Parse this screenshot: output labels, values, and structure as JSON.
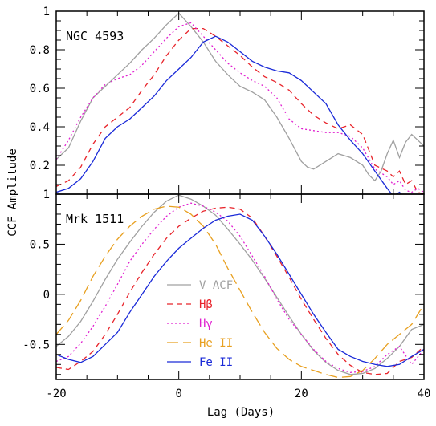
{
  "chart_data": [
    {
      "type": "line",
      "panel_label": "NGC 4593",
      "xlim": [
        -20,
        40
      ],
      "ylim": [
        0.05,
        1.0
      ],
      "yticks": [
        0.2,
        0.4,
        0.6,
        0.8,
        1
      ],
      "ytick_labels": [
        "0.2",
        "0.4",
        "0.6",
        "0.8",
        "1"
      ],
      "series": [
        {
          "key": "vacf",
          "color": "#a0a0a0",
          "dash": "solid",
          "x": [
            -20,
            -18,
            -16,
            -14,
            -12,
            -10,
            -8,
            -6,
            -4,
            -2,
            0,
            2,
            4,
            6,
            8,
            10,
            12,
            14,
            16,
            18,
            20,
            21,
            22,
            24,
            26,
            28,
            30,
            31,
            32,
            33,
            34,
            35,
            36,
            37,
            38,
            39,
            40
          ],
          "y": [
            0.23,
            0.29,
            0.43,
            0.55,
            0.61,
            0.67,
            0.73,
            0.8,
            0.86,
            0.93,
            0.99,
            0.92,
            0.84,
            0.74,
            0.67,
            0.61,
            0.58,
            0.54,
            0.45,
            0.34,
            0.22,
            0.19,
            0.18,
            0.22,
            0.26,
            0.24,
            0.2,
            0.15,
            0.12,
            0.17,
            0.26,
            0.33,
            0.24,
            0.32,
            0.36,
            0.33,
            0.3
          ]
        },
        {
          "key": "hbeta",
          "color": "#e8242b",
          "dash": "7,5",
          "x": [
            -20,
            -18,
            -16,
            -14,
            -12,
            -10,
            -8,
            -6,
            -4,
            -2,
            0,
            2,
            4,
            6,
            8,
            10,
            12,
            14,
            16,
            18,
            20,
            22,
            24,
            26,
            28,
            30,
            32,
            34,
            35,
            36,
            37,
            38,
            39,
            40
          ],
          "y": [
            0.09,
            0.12,
            0.19,
            0.31,
            0.4,
            0.45,
            0.5,
            0.59,
            0.67,
            0.77,
            0.85,
            0.91,
            0.91,
            0.87,
            0.82,
            0.77,
            0.71,
            0.66,
            0.63,
            0.59,
            0.52,
            0.46,
            0.42,
            0.39,
            0.41,
            0.36,
            0.2,
            0.17,
            0.14,
            0.17,
            0.1,
            0.12,
            0.06,
            0.05
          ]
        },
        {
          "key": "hgamma",
          "color": "#e020d0",
          "dash": "2,3",
          "x": [
            -20,
            -18,
            -16,
            -14,
            -12,
            -10,
            -8,
            -6,
            -4,
            -2,
            0,
            2,
            4,
            6,
            8,
            10,
            12,
            14,
            16,
            18,
            20,
            22,
            24,
            26,
            28,
            30,
            32,
            34,
            35,
            36,
            37,
            38,
            39,
            40
          ],
          "y": [
            0.23,
            0.33,
            0.45,
            0.55,
            0.62,
            0.65,
            0.67,
            0.72,
            0.79,
            0.86,
            0.92,
            0.94,
            0.87,
            0.8,
            0.73,
            0.68,
            0.64,
            0.61,
            0.55,
            0.44,
            0.39,
            0.38,
            0.37,
            0.37,
            0.35,
            0.29,
            0.18,
            0.14,
            0.1,
            0.12,
            0.07,
            0.06,
            0.08,
            0.06
          ]
        },
        {
          "key": "fe2",
          "color": "#1a2ad8",
          "dash": "solid",
          "x": [
            -20,
            -18,
            -16,
            -14,
            -12,
            -10,
            -8,
            -6,
            -4,
            -2,
            0,
            2,
            4,
            6,
            8,
            10,
            12,
            14,
            16,
            18,
            20,
            22,
            24,
            26,
            28,
            30,
            32,
            34,
            35,
            36,
            37,
            38,
            39,
            40
          ],
          "y": [
            0.06,
            0.08,
            0.13,
            0.22,
            0.34,
            0.4,
            0.44,
            0.5,
            0.56,
            0.64,
            0.7,
            0.76,
            0.84,
            0.87,
            0.84,
            0.79,
            0.74,
            0.71,
            0.69,
            0.68,
            0.64,
            0.58,
            0.52,
            0.41,
            0.33,
            0.26,
            0.17,
            0.08,
            0.04,
            0.06,
            0.03,
            0.02,
            0.02,
            0.03
          ]
        }
      ]
    },
    {
      "type": "line",
      "panel_label": "Mrk 1511",
      "xlim": [
        -20,
        40
      ],
      "ylim": [
        -0.85,
        1.0
      ],
      "yticks": [
        -0.5,
        0,
        0.5,
        1
      ],
      "ytick_labels": [
        "-0.5",
        "0",
        "0.5",
        "1"
      ],
      "xticks": [
        -20,
        0,
        20,
        40
      ],
      "xtick_labels": [
        "-20",
        "0",
        "20",
        "40"
      ],
      "xlabel": "Lag (Days)",
      "ylabel": "CCF Amplitude",
      "series": [
        {
          "key": "vacf",
          "name": "V ACF",
          "color": "#a0a0a0",
          "dash": "solid",
          "x": [
            -20,
            -18,
            -16,
            -14,
            -12,
            -10,
            -8,
            -6,
            -4,
            -2,
            0,
            2,
            4,
            6,
            8,
            10,
            12,
            14,
            16,
            18,
            20,
            22,
            24,
            26,
            28,
            30,
            32,
            34,
            36,
            38,
            40
          ],
          "y": [
            -0.52,
            -0.42,
            -0.27,
            -0.07,
            0.15,
            0.35,
            0.52,
            0.68,
            0.82,
            0.93,
            0.99,
            0.95,
            0.88,
            0.79,
            0.65,
            0.5,
            0.34,
            0.16,
            -0.03,
            -0.22,
            -0.4,
            -0.56,
            -0.68,
            -0.76,
            -0.8,
            -0.79,
            -0.74,
            -0.64,
            -0.52,
            -0.35,
            -0.3
          ]
        },
        {
          "key": "hbeta",
          "name": "Hβ",
          "color": "#e8242b",
          "dash": "7,5",
          "x": [
            -20,
            -18,
            -16,
            -14,
            -12,
            -10,
            -8,
            -6,
            -4,
            -2,
            0,
            2,
            4,
            6,
            8,
            10,
            12,
            14,
            16,
            18,
            20,
            22,
            24,
            26,
            28,
            30,
            32,
            34,
            36,
            38,
            40
          ],
          "y": [
            -0.73,
            -0.75,
            -0.67,
            -0.57,
            -0.4,
            -0.2,
            0.02,
            0.22,
            0.4,
            0.56,
            0.68,
            0.76,
            0.83,
            0.86,
            0.87,
            0.85,
            0.76,
            0.58,
            0.38,
            0.17,
            -0.05,
            -0.25,
            -0.44,
            -0.6,
            -0.71,
            -0.78,
            -0.8,
            -0.79,
            -0.67,
            -0.63,
            -0.52
          ]
        },
        {
          "key": "hgamma",
          "name": "Hγ",
          "color": "#e020d0",
          "dash": "2,3",
          "x": [
            -20,
            -18,
            -16,
            -14,
            -12,
            -10,
            -8,
            -6,
            -4,
            -2,
            0,
            2,
            4,
            6,
            8,
            10,
            12,
            14,
            16,
            18,
            20,
            22,
            24,
            26,
            28,
            30,
            32,
            34,
            36,
            38,
            40
          ],
          "y": [
            -0.67,
            -0.62,
            -0.49,
            -0.32,
            -0.12,
            0.1,
            0.33,
            0.5,
            0.65,
            0.78,
            0.87,
            0.91,
            0.88,
            0.82,
            0.73,
            0.58,
            0.38,
            0.18,
            -0.05,
            -0.25,
            -0.4,
            -0.55,
            -0.67,
            -0.74,
            -0.78,
            -0.77,
            -0.72,
            -0.6,
            -0.52,
            -0.7,
            -0.55
          ]
        },
        {
          "key": "he2",
          "name": "He II",
          "color": "#e8a020",
          "dash": "14,6",
          "x": [
            -20,
            -18,
            -16,
            -14,
            -12,
            -10,
            -8,
            -6,
            -4,
            -2,
            0,
            2,
            4,
            6,
            8,
            10,
            12,
            14,
            16,
            18,
            20,
            22,
            24,
            26,
            28,
            30,
            32,
            34,
            36,
            38,
            40
          ],
          "y": [
            -0.4,
            -0.26,
            -0.06,
            0.18,
            0.38,
            0.55,
            0.68,
            0.78,
            0.85,
            0.88,
            0.87,
            0.8,
            0.68,
            0.5,
            0.26,
            0.04,
            -0.18,
            -0.38,
            -0.54,
            -0.65,
            -0.72,
            -0.76,
            -0.8,
            -0.83,
            -0.82,
            -0.76,
            -0.64,
            -0.5,
            -0.4,
            -0.3,
            -0.1
          ]
        },
        {
          "key": "fe2",
          "name": "Fe II",
          "color": "#1a2ad8",
          "dash": "solid",
          "x": [
            -20,
            -18,
            -16,
            -14,
            -12,
            -10,
            -8,
            -6,
            -4,
            -2,
            0,
            2,
            4,
            6,
            8,
            10,
            12,
            14,
            16,
            18,
            20,
            22,
            24,
            26,
            28,
            30,
            32,
            34,
            36,
            38,
            40
          ],
          "y": [
            -0.6,
            -0.65,
            -0.68,
            -0.62,
            -0.5,
            -0.38,
            -0.18,
            0.0,
            0.18,
            0.33,
            0.46,
            0.56,
            0.66,
            0.74,
            0.78,
            0.8,
            0.74,
            0.58,
            0.4,
            0.2,
            0.0,
            -0.2,
            -0.38,
            -0.55,
            -0.62,
            -0.67,
            -0.7,
            -0.72,
            -0.7,
            -0.62,
            -0.55
          ]
        }
      ]
    }
  ]
}
